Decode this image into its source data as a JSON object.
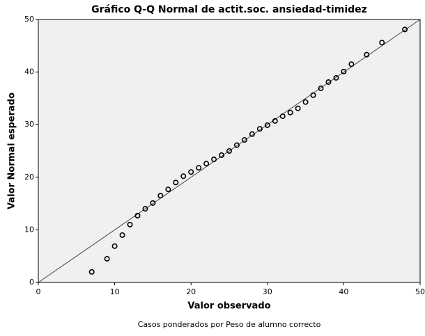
{
  "chart_data": {
    "type": "scatter",
    "title": "Gráfico Q-Q Normal de actit.soc. ansiedad-timidez",
    "x_label": "Valor observado",
    "y_label": "Valor Normal esperado",
    "footnote": "Casos ponderados por Peso de alumno correcto",
    "x": [
      7,
      9,
      10,
      11,
      12,
      13,
      14,
      15,
      16,
      17,
      18,
      19,
      20,
      21,
      22,
      23,
      24,
      25,
      26,
      27,
      28,
      29,
      30,
      31,
      32,
      33,
      34,
      35,
      36,
      37,
      38,
      39,
      40,
      41,
      43,
      45,
      48
    ],
    "values": [
      2.0,
      4.5,
      6.9,
      9.0,
      11.0,
      12.7,
      14.0,
      15.1,
      16.5,
      17.7,
      19.0,
      20.2,
      21.0,
      21.8,
      22.6,
      23.4,
      24.2,
      25.0,
      26.1,
      27.1,
      28.2,
      29.2,
      29.9,
      30.7,
      31.6,
      32.3,
      33.1,
      34.3,
      35.6,
      36.9,
      38.1,
      38.9,
      40.1,
      41.5,
      43.3,
      45.6,
      48.1
    ],
    "color": "#000000",
    "xlim": [
      0,
      50
    ],
    "xticks": [
      0,
      10,
      20,
      30,
      40,
      50
    ],
    "ylim": [
      0,
      50
    ],
    "yticks": [
      0,
      10,
      20,
      30,
      40,
      50
    ]
  }
}
